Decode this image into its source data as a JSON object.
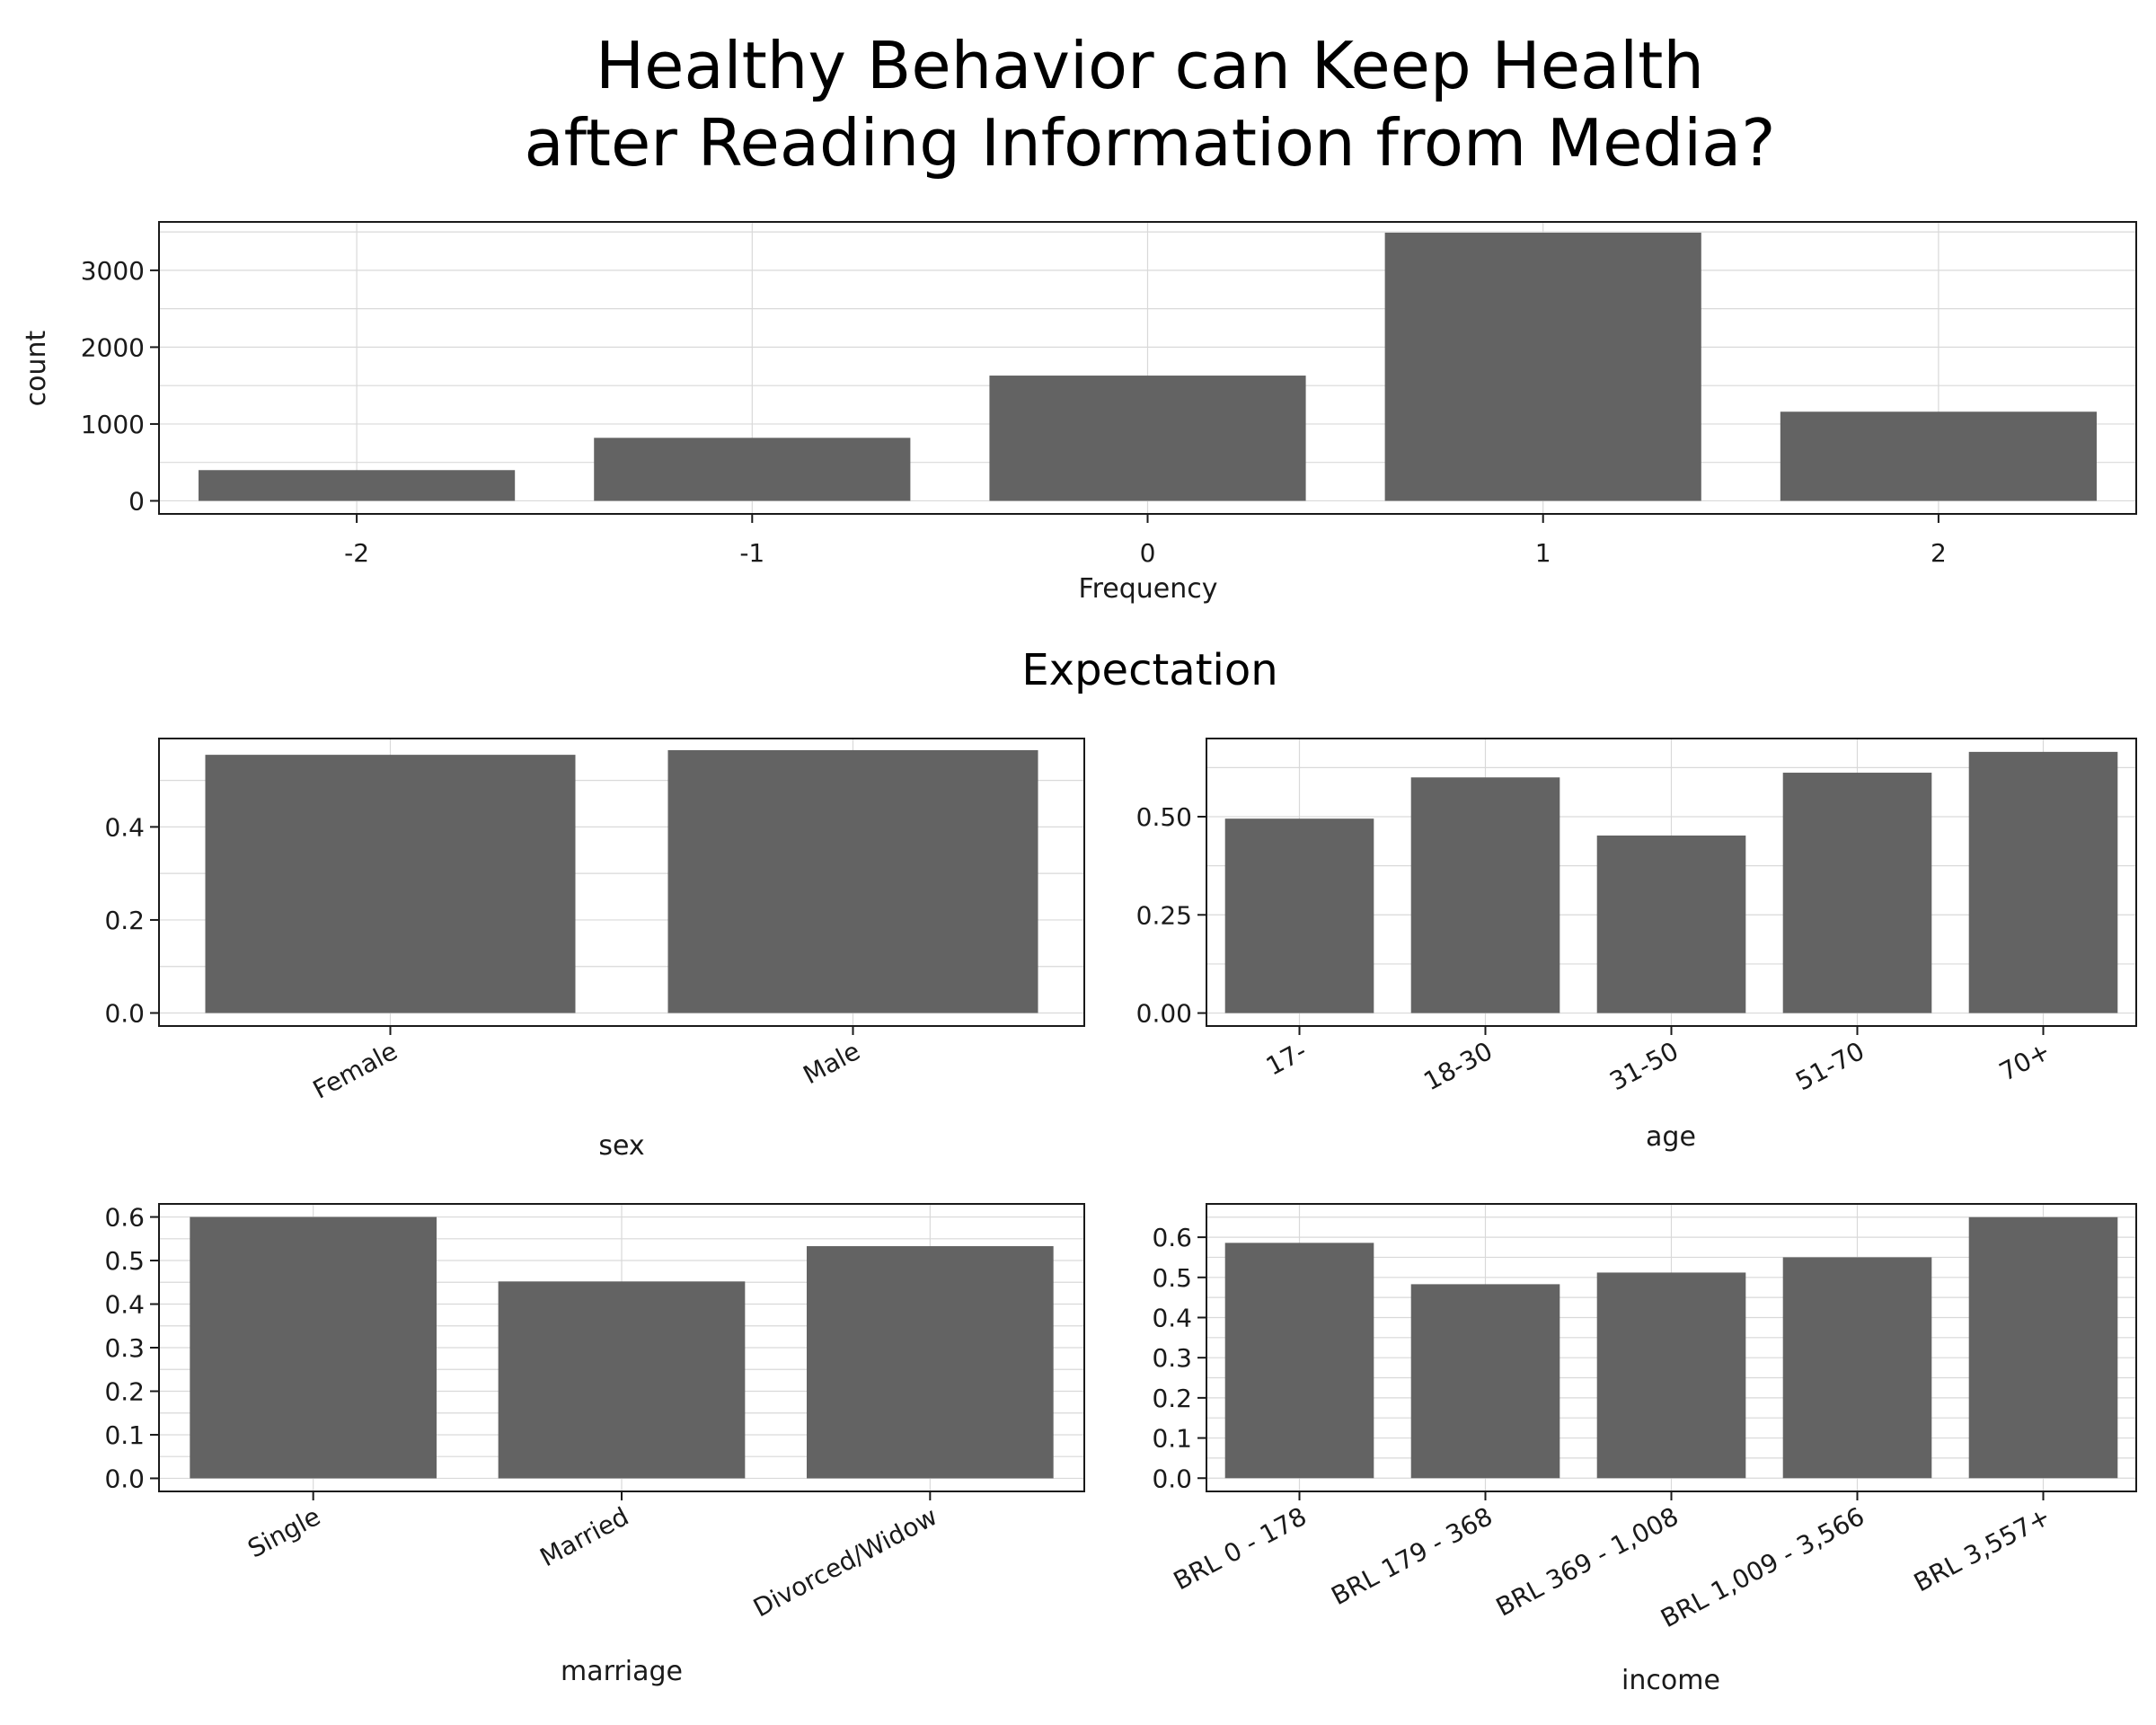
{
  "title_lines": [
    "Healthy Behavior can Keep Health",
    "after Reading Information from Media?"
  ],
  "subtitle": "Expectation",
  "colors": {
    "bar": "#636363",
    "grid": "#d9d9d9",
    "frame": "#1a1a1a"
  },
  "chart_data": [
    {
      "id": "frequency",
      "type": "bar",
      "categories": [
        "-2",
        "-1",
        "0",
        "1",
        "2"
      ],
      "values": [
        400,
        820,
        1630,
        3490,
        1160
      ],
      "ylim": [
        -170,
        3630
      ],
      "yticks": [
        0,
        1000,
        2000,
        3000
      ],
      "ytick_labels": [
        "0",
        "1000",
        "2000",
        "3000"
      ],
      "xlabel": "Frequency",
      "ylabel": "count",
      "grid": true
    },
    {
      "id": "sex",
      "type": "bar",
      "categories": [
        "Female",
        "Male"
      ],
      "values": [
        0.555,
        0.565
      ],
      "ylim": [
        -0.028,
        0.59
      ],
      "yticks": [
        0.0,
        0.2,
        0.4
      ],
      "ytick_labels": [
        "0.0",
        "0.2",
        "0.4"
      ],
      "xlabel": "sex",
      "ylabel": "",
      "grid": true
    },
    {
      "id": "age",
      "type": "bar",
      "categories": [
        "17-",
        "18-30",
        "31-50",
        "51-70",
        "70+"
      ],
      "values": [
        0.495,
        0.6,
        0.452,
        0.612,
        0.665
      ],
      "ylim": [
        -0.033,
        0.699
      ],
      "yticks": [
        0.0,
        0.25,
        0.5
      ],
      "ytick_labels": [
        "0.00",
        "0.25",
        "0.50"
      ],
      "xlabel": "age",
      "ylabel": "",
      "grid": true
    },
    {
      "id": "marriage",
      "type": "bar",
      "categories": [
        "Single",
        "Married",
        "Divorced/Widow"
      ],
      "values": [
        0.6,
        0.452,
        0.533
      ],
      "ylim": [
        -0.03,
        0.63
      ],
      "yticks": [
        0.0,
        0.1,
        0.2,
        0.3,
        0.4,
        0.5,
        0.6
      ],
      "ytick_labels": [
        "0.0",
        "0.1",
        "0.2",
        "0.3",
        "0.4",
        "0.5",
        "0.6"
      ],
      "xlabel": "marriage",
      "ylabel": "",
      "grid": true
    },
    {
      "id": "income",
      "type": "bar",
      "categories": [
        "BRL 0 - 178",
        "BRL 179 - 368",
        "BRL 369 - 1,008",
        "BRL 1,009 - 3,566",
        "BRL 3,557+"
      ],
      "values": [
        0.586,
        0.483,
        0.512,
        0.55,
        0.65
      ],
      "ylim": [
        -0.033,
        0.683
      ],
      "yticks": [
        0.0,
        0.1,
        0.2,
        0.3,
        0.4,
        0.5,
        0.6
      ],
      "ytick_labels": [
        "0.0",
        "0.1",
        "0.2",
        "0.3",
        "0.4",
        "0.5",
        "0.6"
      ],
      "xlabel": "income",
      "ylabel": "",
      "grid": true
    }
  ]
}
